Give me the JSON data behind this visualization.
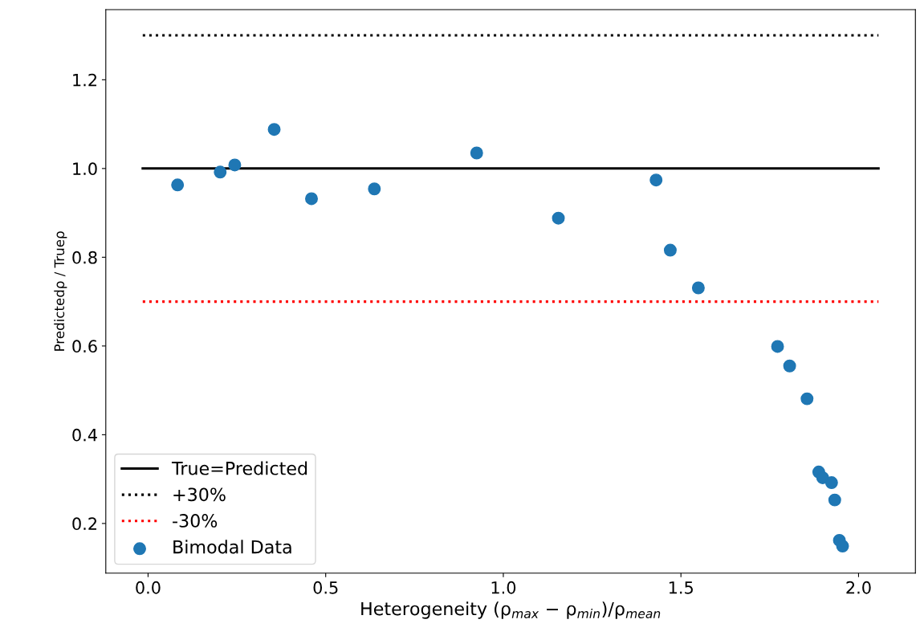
{
  "chart_data": {
    "type": "scatter",
    "xlabel": "Heterogeneity (ρ$_{max}$ − ρ$_{min}$)/ρ$_{mean}$",
    "ylabel": "Predictedρ / Trueρ",
    "xlim": [
      -0.119,
      2.16
    ],
    "ylim": [
      0.088,
      1.358
    ],
    "xticks": [
      {
        "value": 0,
        "label": "0.0"
      },
      0.5,
      {
        "value": 1,
        "label": "1.0"
      },
      1.5,
      {
        "value": 2,
        "label": "2.0"
      }
    ],
    "yticks": [
      0.2,
      0.4,
      0.6,
      0.8,
      {
        "value": 1,
        "label": "1.0"
      },
      1.2
    ],
    "grid": false,
    "legend": "bottom left",
    "series": [
      {
        "name": "True=Predicted",
        "type": "line",
        "line_style": "solid",
        "marker": "none",
        "color": "#000000",
        "x": [
          -0.015,
          2.056
        ],
        "values": [
          1.0,
          1.0
        ]
      },
      {
        "name": "+30%",
        "type": "line",
        "line_style": "dotted",
        "marker": "none",
        "color": "#000000",
        "x": [
          -0.015,
          2.056
        ],
        "values": [
          1.3,
          1.3
        ]
      },
      {
        "name": "-30%",
        "type": "line",
        "line_style": "dotted",
        "marker": "none",
        "color": "#ff0000",
        "x": [
          -0.015,
          2.056
        ],
        "values": [
          0.7,
          0.7
        ]
      },
      {
        "name": "Bimodal Data",
        "marker": "circle",
        "color": "#1f77b4",
        "x": [
          0.083,
          0.203,
          0.244,
          0.355,
          0.46,
          0.637,
          0.925,
          1.155,
          1.43,
          1.47,
          1.549,
          1.772,
          1.806,
          1.855,
          1.888,
          1.899,
          1.924,
          1.933,
          1.946,
          1.955
        ],
        "values": [
          0.963,
          0.992,
          1.008,
          1.088,
          0.932,
          0.954,
          1.035,
          0.888,
          0.974,
          0.816,
          0.731,
          0.599,
          0.555,
          0.481,
          0.316,
          0.303,
          0.292,
          0.253,
          0.162,
          0.149
        ]
      }
    ]
  }
}
